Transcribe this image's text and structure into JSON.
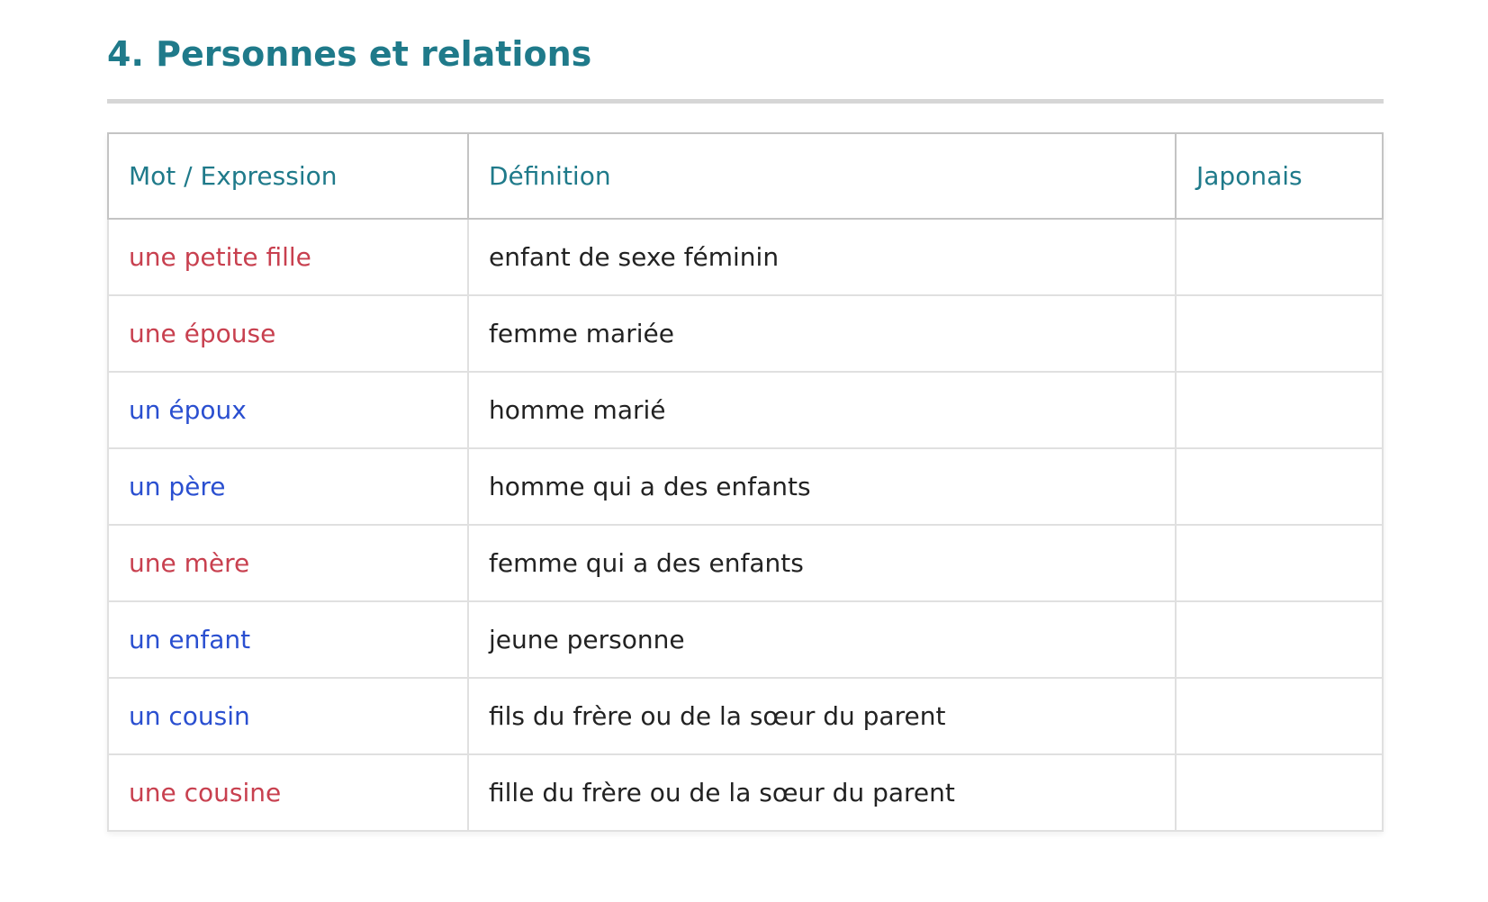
{
  "title": "4. Personnes et relations",
  "table": {
    "headers": [
      "Mot / Expression",
      "Définition",
      "Japonais"
    ],
    "rows": [
      {
        "word": "une petite fille",
        "definition": "enfant de sexe féminin",
        "japanese": "",
        "gender": "f"
      },
      {
        "word": "une épouse",
        "definition": "femme mariée",
        "japanese": "",
        "gender": "f"
      },
      {
        "word": "un époux",
        "definition": "homme marié",
        "japanese": "",
        "gender": "m"
      },
      {
        "word": "un père",
        "definition": "homme qui a des enfants",
        "japanese": "",
        "gender": "m"
      },
      {
        "word": "une mère",
        "definition": "femme qui a des enfants",
        "japanese": "",
        "gender": "f"
      },
      {
        "word": "un enfant",
        "definition": "jeune personne",
        "japanese": "",
        "gender": "m"
      },
      {
        "word": "un cousin",
        "definition": "fils du frère ou de la sœur du parent",
        "japanese": "",
        "gender": "m"
      },
      {
        "word": "une cousine",
        "definition": "fille du frère ou de la sœur du parent",
        "japanese": "",
        "gender": "f"
      }
    ]
  },
  "colors": {
    "heading": "#1f7a8a",
    "feminine": "#c8404f",
    "masculine": "#2a4fd0"
  }
}
